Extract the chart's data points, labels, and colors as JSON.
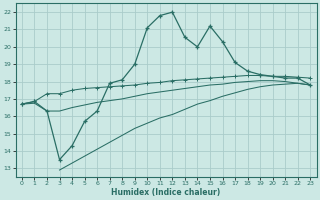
{
  "xlabel": "Humidex (Indice chaleur)",
  "bg_color": "#cce8e4",
  "grid_color": "#aaccca",
  "line_color": "#2a6e65",
  "xlim": [
    -0.5,
    23.5
  ],
  "ylim": [
    12.5,
    22.5
  ],
  "xticks": [
    0,
    1,
    2,
    3,
    4,
    5,
    6,
    7,
    8,
    9,
    10,
    11,
    12,
    13,
    14,
    15,
    16,
    17,
    18,
    19,
    20,
    21,
    22,
    23
  ],
  "yticks": [
    13,
    14,
    15,
    16,
    17,
    18,
    19,
    20,
    21,
    22
  ],
  "line1_x": [
    0,
    1,
    2,
    3,
    4,
    5,
    6,
    7,
    8,
    9,
    10,
    11,
    12,
    13,
    14,
    15,
    16,
    17,
    18,
    19,
    20,
    21,
    22,
    23
  ],
  "line1_y": [
    16.7,
    16.85,
    16.3,
    13.5,
    14.3,
    15.7,
    16.3,
    17.9,
    18.1,
    19.0,
    21.1,
    21.8,
    22.0,
    20.55,
    20.0,
    21.2,
    20.3,
    19.1,
    18.6,
    18.4,
    18.3,
    18.2,
    18.2,
    17.8
  ],
  "line2_x": [
    0,
    1,
    2,
    3,
    4,
    5,
    6,
    7,
    8,
    9,
    10,
    11,
    12,
    13,
    14,
    15,
    16,
    17,
    18,
    19,
    20,
    21,
    22,
    23
  ],
  "line2_y": [
    16.7,
    16.85,
    17.3,
    17.3,
    17.5,
    17.6,
    17.65,
    17.7,
    17.75,
    17.8,
    17.9,
    17.95,
    18.05,
    18.1,
    18.15,
    18.2,
    18.25,
    18.3,
    18.35,
    18.35,
    18.3,
    18.3,
    18.25,
    18.2
  ],
  "line3_x": [
    0,
    1,
    2,
    3,
    4,
    5,
    6,
    7,
    8,
    9,
    10,
    11,
    12,
    13,
    14,
    15,
    16,
    17,
    18,
    19,
    20,
    21,
    22,
    23
  ],
  "line3_y": [
    16.7,
    16.75,
    16.3,
    16.3,
    16.5,
    16.65,
    16.8,
    16.9,
    17.0,
    17.15,
    17.3,
    17.4,
    17.5,
    17.6,
    17.7,
    17.8,
    17.85,
    17.95,
    18.0,
    18.05,
    18.05,
    18.0,
    17.9,
    17.8
  ],
  "line4_x": [
    3,
    4,
    5,
    6,
    7,
    8,
    9,
    10,
    11,
    12,
    13,
    14,
    15,
    16,
    17,
    18,
    19,
    20,
    21,
    22,
    23
  ],
  "line4_y": [
    12.9,
    13.3,
    13.7,
    14.1,
    14.5,
    14.9,
    15.3,
    15.6,
    15.9,
    16.1,
    16.4,
    16.7,
    16.9,
    17.15,
    17.35,
    17.55,
    17.7,
    17.8,
    17.85,
    17.9,
    17.8
  ]
}
